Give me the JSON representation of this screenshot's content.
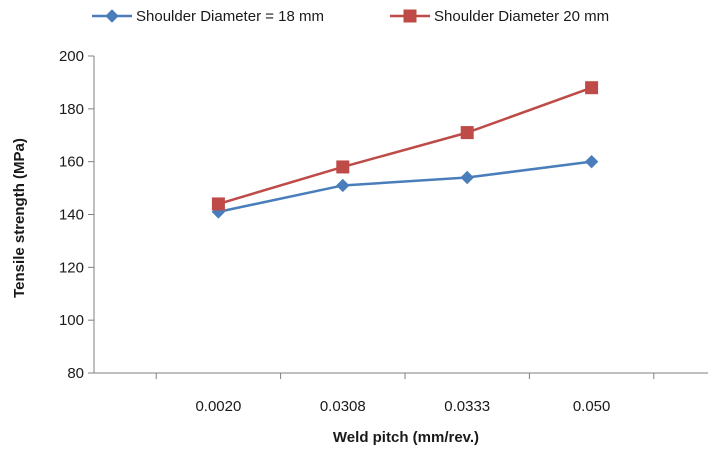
{
  "chart_data": {
    "type": "line",
    "title": "",
    "xlabel": "Weld pitch (mm/rev.)",
    "ylabel": "Tensile strength (MPa)",
    "categories": [
      "0.0020",
      "0.0308",
      "0.0333",
      "0.050"
    ],
    "ylim": [
      80,
      200
    ],
    "yticks": [
      80,
      100,
      120,
      140,
      160,
      180,
      200
    ],
    "grid": false,
    "legend": "top",
    "series": [
      {
        "name": "Shoulder Diameter = 18 mm",
        "values": [
          141,
          151,
          154,
          160
        ],
        "color": "#4a7ebb",
        "marker": "diamond"
      },
      {
        "name": "Shoulder Diameter 20 mm",
        "values": [
          144,
          158,
          171,
          188
        ],
        "color": "#be4b48",
        "marker": "square"
      }
    ]
  }
}
